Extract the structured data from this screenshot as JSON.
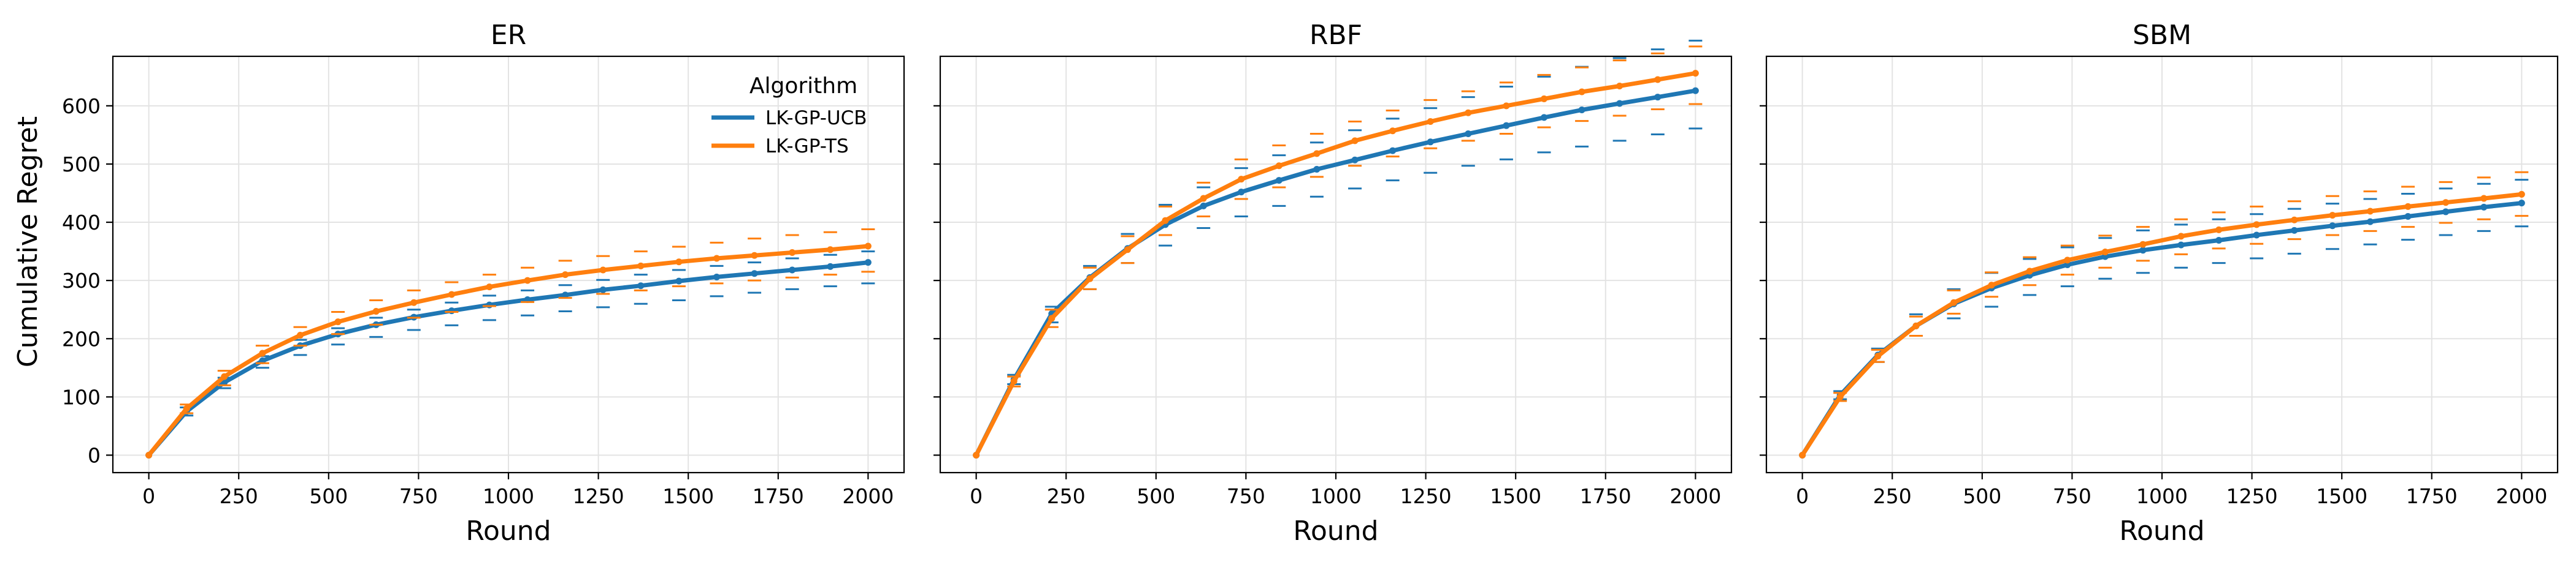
{
  "figure": {
    "ylabel": "Cumulative Regret",
    "legend": {
      "title": "Algorithm",
      "location": "top-right of first panel",
      "entries": [
        "LK-GP-UCB",
        "LK-GP-TS"
      ]
    },
    "colors": {
      "LK-GP-UCB": "#1f77b4",
      "LK-GP-TS": "#ff7f0e"
    }
  },
  "chart_data": [
    {
      "type": "line",
      "title": "ER",
      "xlabel": "Round",
      "ylabel": "Cumulative Regret",
      "xlim": [
        -100,
        2100
      ],
      "ylim": [
        -30,
        685
      ],
      "xticks": [
        0,
        250,
        500,
        750,
        1000,
        1250,
        1500,
        1750,
        2000
      ],
      "yticks": [
        0,
        100,
        200,
        300,
        400,
        500,
        600
      ],
      "grid": true,
      "x": [
        0,
        105,
        210,
        316,
        421,
        526,
        632,
        737,
        842,
        947,
        1053,
        1158,
        1263,
        1368,
        1474,
        1579,
        1684,
        1789,
        1895,
        2000
      ],
      "series": [
        {
          "name": "LK-GP-UCB",
          "values": [
            0,
            75,
            125,
            162,
            188,
            208,
            224,
            237,
            248,
            258,
            267,
            275,
            284,
            291,
            299,
            306,
            312,
            318,
            324,
            331
          ],
          "lower": [
            0,
            68,
            115,
            150,
            172,
            190,
            203,
            215,
            223,
            232,
            240,
            247,
            254,
            260,
            266,
            273,
            279,
            285,
            290,
            295
          ],
          "upper": [
            0,
            82,
            133,
            170,
            198,
            218,
            236,
            250,
            262,
            274,
            283,
            292,
            301,
            310,
            318,
            325,
            331,
            338,
            344,
            350
          ]
        },
        {
          "name": "LK-GP-TS",
          "values": [
            0,
            80,
            135,
            175,
            206,
            229,
            247,
            262,
            276,
            289,
            300,
            310,
            318,
            325,
            332,
            338,
            343,
            348,
            353,
            359
          ],
          "lower": [
            0,
            72,
            120,
            158,
            188,
            208,
            224,
            236,
            246,
            256,
            263,
            270,
            277,
            283,
            290,
            295,
            300,
            305,
            310,
            315
          ],
          "upper": [
            0,
            87,
            145,
            188,
            220,
            246,
            266,
            283,
            297,
            310,
            322,
            334,
            342,
            350,
            358,
            365,
            372,
            378,
            383,
            388
          ]
        }
      ]
    },
    {
      "type": "line",
      "title": "RBF",
      "xlabel": "Round",
      "ylabel": "",
      "xlim": [
        -100,
        2100
      ],
      "ylim": [
        -30,
        685
      ],
      "xticks": [
        0,
        250,
        500,
        750,
        1000,
        1250,
        1500,
        1750,
        2000
      ],
      "yticks": [
        0,
        100,
        200,
        300,
        400,
        500,
        600
      ],
      "grid": true,
      "x": [
        0,
        105,
        210,
        316,
        421,
        526,
        632,
        737,
        842,
        947,
        1053,
        1158,
        1263,
        1368,
        1474,
        1579,
        1684,
        1789,
        1895,
        2000
      ],
      "series": [
        {
          "name": "LK-GP-UCB",
          "values": [
            0,
            130,
            243,
            305,
            355,
            396,
            428,
            452,
            472,
            491,
            507,
            523,
            538,
            552,
            566,
            580,
            593,
            604,
            615,
            626
          ],
          "lower": [
            0,
            122,
            228,
            285,
            330,
            360,
            390,
            410,
            428,
            444,
            458,
            472,
            485,
            497,
            508,
            520,
            530,
            540,
            551,
            561
          ],
          "upper": [
            0,
            138,
            255,
            325,
            380,
            430,
            460,
            493,
            515,
            537,
            558,
            578,
            596,
            615,
            633,
            650,
            667,
            682,
            697,
            712
          ]
        },
        {
          "name": "LK-GP-TS",
          "values": [
            0,
            127,
            235,
            303,
            353,
            403,
            441,
            474,
            497,
            518,
            540,
            557,
            573,
            588,
            600,
            612,
            624,
            634,
            645,
            656
          ],
          "lower": [
            0,
            118,
            220,
            285,
            330,
            378,
            410,
            440,
            460,
            478,
            497,
            513,
            527,
            540,
            552,
            563,
            574,
            583,
            594,
            603
          ],
          "upper": [
            0,
            135,
            250,
            322,
            376,
            427,
            468,
            508,
            532,
            552,
            573,
            592,
            610,
            625,
            640,
            653,
            666,
            678,
            690,
            702
          ]
        }
      ]
    },
    {
      "type": "line",
      "title": "SBM",
      "xlabel": "Round",
      "ylabel": "",
      "xlim": [
        -100,
        2100
      ],
      "ylim": [
        -30,
        685
      ],
      "xticks": [
        0,
        250,
        500,
        750,
        1000,
        1250,
        1500,
        1750,
        2000
      ],
      "yticks": [
        0,
        100,
        200,
        300,
        400,
        500,
        600
      ],
      "grid": true,
      "x": [
        0,
        105,
        210,
        316,
        421,
        526,
        632,
        737,
        842,
        947,
        1053,
        1158,
        1263,
        1368,
        1474,
        1579,
        1684,
        1789,
        1895,
        2000
      ],
      "series": [
        {
          "name": "LK-GP-UCB",
          "values": [
            0,
            103,
            172,
            222,
            260,
            287,
            309,
            327,
            341,
            352,
            361,
            369,
            378,
            386,
            394,
            401,
            410,
            418,
            426,
            433
          ],
          "lower": [
            0,
            96,
            160,
            205,
            235,
            255,
            275,
            290,
            303,
            313,
            322,
            330,
            338,
            346,
            354,
            362,
            370,
            378,
            385,
            393
          ],
          "upper": [
            0,
            110,
            183,
            242,
            285,
            313,
            337,
            357,
            373,
            386,
            396,
            405,
            414,
            423,
            432,
            440,
            449,
            458,
            466,
            473
          ]
        },
        {
          "name": "LK-GP-TS",
          "values": [
            0,
            100,
            170,
            222,
            262,
            292,
            316,
            335,
            349,
            362,
            376,
            387,
            396,
            404,
            412,
            419,
            427,
            434,
            441,
            448
          ],
          "lower": [
            0,
            93,
            160,
            205,
            243,
            272,
            292,
            310,
            322,
            334,
            345,
            355,
            363,
            371,
            378,
            385,
            392,
            399,
            405,
            411
          ],
          "upper": [
            0,
            107,
            181,
            238,
            283,
            314,
            340,
            360,
            377,
            392,
            405,
            417,
            427,
            436,
            445,
            453,
            461,
            469,
            477,
            486
          ]
        }
      ]
    }
  ]
}
